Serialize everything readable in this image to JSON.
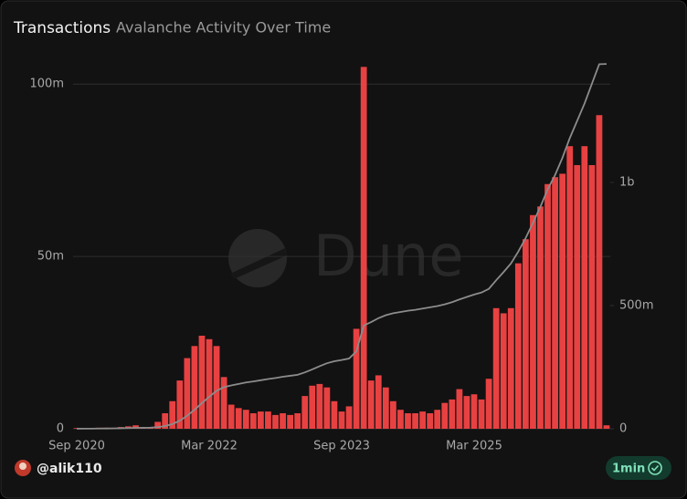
{
  "header": {
    "title": "Transactions",
    "subtitle": "Avalanche Activity Over Time"
  },
  "watermark": "Dune",
  "footer": {
    "user": "@alik110",
    "refresh": "1min"
  },
  "chart_data": {
    "type": "bar",
    "categories": [
      "Sep 2020",
      null,
      null,
      null,
      null,
      null,
      null,
      null,
      null,
      null,
      null,
      null,
      null,
      null,
      null,
      null,
      null,
      null,
      "Mar 2022",
      null,
      null,
      null,
      null,
      null,
      null,
      null,
      null,
      null,
      null,
      null,
      null,
      null,
      null,
      null,
      null,
      null,
      "Sep 2023",
      null,
      null,
      null,
      null,
      null,
      null,
      null,
      null,
      null,
      null,
      null,
      null,
      null,
      null,
      null,
      null,
      null,
      "Mar 2025",
      null,
      null,
      null,
      null,
      null,
      null,
      null,
      null,
      null,
      null,
      null,
      null,
      null,
      null,
      null,
      null,
      null,
      null
    ],
    "series": [
      {
        "type": "bar",
        "color": "#e84142",
        "values": [
          200000,
          200000,
          200000,
          300000,
          300000,
          300000,
          500000,
          700000,
          1000000,
          300000,
          500000,
          2000000,
          4500000,
          8000000,
          14000000,
          20500000,
          24000000,
          27000000,
          26000000,
          24000000,
          15000000,
          7000000,
          6000000,
          5500000,
          4500000,
          5000000,
          5000000,
          4000000,
          4500000,
          4000000,
          4500000,
          9500000,
          12500000,
          13000000,
          12000000,
          8000000,
          5000000,
          6500000,
          29000000,
          105000000,
          14000000,
          15500000,
          12000000,
          8000000,
          5500000,
          4500000,
          4500000,
          5000000,
          4500000,
          5500000,
          7500000,
          8500000,
          11500000,
          9500000,
          10000000,
          8500000,
          14500000,
          35000000,
          33500000,
          35000000,
          48000000,
          55000000,
          62000000,
          64500000,
          71000000,
          73000000,
          74000000,
          82000000,
          76500000,
          82000000,
          76500000,
          91000000,
          1000000
        ]
      },
      {
        "type": "line",
        "axis": "y2",
        "color": "#8c8c8c",
        "values": [
          200000,
          400000,
          600000,
          900000,
          1200000,
          1500000,
          2000000,
          2700000,
          3700000,
          4000000,
          4500000,
          6500000,
          11000000,
          19000000,
          33000000,
          53000000,
          77000000,
          104000000,
          130000000,
          154000000,
          169000000,
          176000000,
          182000000,
          188000000,
          192000000,
          197000000,
          202000000,
          206000000,
          211000000,
          215000000,
          219000000,
          229000000,
          241000000,
          254000000,
          266000000,
          274000000,
          279000000,
          285000000,
          314000000,
          419000000,
          433000000,
          449000000,
          461000000,
          469000000,
          474000000,
          479000000,
          483000000,
          488000000,
          493000000,
          498000000,
          505000000,
          514000000,
          525000000,
          535000000,
          545000000,
          553000000,
          568000000,
          603000000,
          636000000,
          671000000,
          719000000,
          774000000,
          836000000,
          901000000,
          972000000,
          1030000000,
          1100000000,
          1180000000,
          1250000000,
          1320000000,
          1400000000,
          1480000000,
          1481000000
        ]
      }
    ],
    "ylim": [
      0,
      108000000
    ],
    "yticks": [
      0,
      {
        "value": 50000000,
        "label": "50m"
      },
      {
        "value": 100000000,
        "label": "100m"
      }
    ],
    "y2lim": [
      0,
      1511000000
    ],
    "y2ticks": [
      0,
      {
        "value": 500000000,
        "label": "500m"
      },
      {
        "value": 1000000000,
        "label": "1b"
      }
    ],
    "grid": true
  }
}
